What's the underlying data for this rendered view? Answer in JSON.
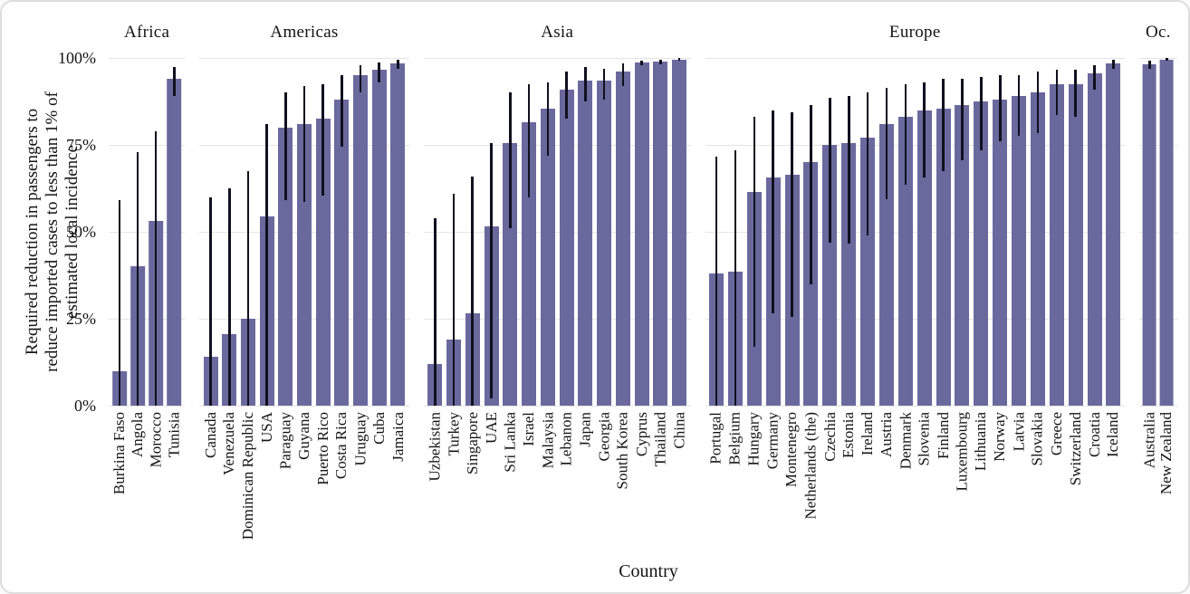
{
  "figure": {
    "x_axis_title": "Country",
    "y_axis": {
      "title_lines": [
        "Required reduction in passengers to",
        "reduce imported cases to less than 1% of",
        "estimated local incidence"
      ],
      "ticks": [
        "0%",
        "25%",
        "50%",
        "75%",
        "100%"
      ]
    },
    "colors": {
      "bar": "#6a699e",
      "error_bar": "#10101f",
      "gridline": "#e4e4e4",
      "text": "#141414",
      "border": "#dedede"
    }
  },
  "chart_data": {
    "type": "bar",
    "title": "",
    "xlabel": "Country",
    "ylabel": "Required reduction in passengers to reduce imported cases to less than 1% of estimated local incidence",
    "ylim": [
      0,
      100
    ],
    "y_tick_values": [
      0,
      25,
      50,
      75,
      100
    ],
    "grid": "horizontal",
    "legend": "none",
    "error_bars": true,
    "value_unit": "%",
    "facets": [
      {
        "name": "Africa",
        "countries": [
          {
            "name": "Burkina Faso",
            "value": 10,
            "lo": 0,
            "hi": 59
          },
          {
            "name": "Angola",
            "value": 40,
            "lo": 0,
            "hi": 73
          },
          {
            "name": "Morocco",
            "value": 53,
            "lo": 0,
            "hi": 79
          },
          {
            "name": "Tunisia",
            "value": 94,
            "lo": 89,
            "hi": 97.5
          }
        ]
      },
      {
        "name": "Americas",
        "countries": [
          {
            "name": "Canada",
            "value": 14,
            "lo": 0,
            "hi": 60
          },
          {
            "name": "Venezuela",
            "value": 20.5,
            "lo": 0,
            "hi": 62.5
          },
          {
            "name": "Dominican Republic",
            "value": 25,
            "lo": 0,
            "hi": 67.5
          },
          {
            "name": "USA",
            "value": 54.5,
            "lo": 0,
            "hi": 81
          },
          {
            "name": "Paraguay",
            "value": 80,
            "lo": 59,
            "hi": 90
          },
          {
            "name": "Guyana",
            "value": 81,
            "lo": 58.5,
            "hi": 92
          },
          {
            "name": "Puerto Rico",
            "value": 82.5,
            "lo": 60.5,
            "hi": 92.5
          },
          {
            "name": "Costa Rica",
            "value": 88,
            "lo": 74.5,
            "hi": 95
          },
          {
            "name": "Uruguay",
            "value": 95,
            "lo": 90,
            "hi": 98
          },
          {
            "name": "Cuba",
            "value": 96.5,
            "lo": 93,
            "hi": 98.7
          },
          {
            "name": "Jamaica",
            "value": 98.4,
            "lo": 97,
            "hi": 99.6
          }
        ]
      },
      {
        "name": "Asia",
        "countries": [
          {
            "name": "Uzbekistan",
            "value": 12,
            "lo": 0,
            "hi": 54
          },
          {
            "name": "Turkey",
            "value": 19,
            "lo": 0,
            "hi": 61
          },
          {
            "name": "Singapore",
            "value": 26.5,
            "lo": 0,
            "hi": 66
          },
          {
            "name": "UAE",
            "value": 51.5,
            "lo": 2,
            "hi": 75.5
          },
          {
            "name": "Sri Lanka",
            "value": 75.5,
            "lo": 51,
            "hi": 90
          },
          {
            "name": "Israel",
            "value": 81.5,
            "lo": 60,
            "hi": 92.5
          },
          {
            "name": "Malaysia",
            "value": 85.5,
            "lo": 72,
            "hi": 93
          },
          {
            "name": "Lebanon",
            "value": 91,
            "lo": 82.5,
            "hi": 96
          },
          {
            "name": "Japan",
            "value": 93.5,
            "lo": 87.5,
            "hi": 97.5
          },
          {
            "name": "Georgia",
            "value": 93.5,
            "lo": 88,
            "hi": 97
          },
          {
            "name": "South Korea",
            "value": 96,
            "lo": 92,
            "hi": 98.5
          },
          {
            "name": "Cyprus",
            "value": 98.7,
            "lo": 97.8,
            "hi": 99.3
          },
          {
            "name": "Thailand",
            "value": 98.9,
            "lo": 98.3,
            "hi": 99.4
          },
          {
            "name": "China",
            "value": 99.6,
            "lo": 99.2,
            "hi": 99.9
          }
        ]
      },
      {
        "name": "Europe",
        "countries": [
          {
            "name": "Portugal",
            "value": 38,
            "lo": 0,
            "hi": 71.5
          },
          {
            "name": "Belgium",
            "value": 38.5,
            "lo": 0,
            "hi": 73.5
          },
          {
            "name": "Hungary",
            "value": 61.5,
            "lo": 17,
            "hi": 83
          },
          {
            "name": "Germany",
            "value": 65.5,
            "lo": 26.5,
            "hi": 85
          },
          {
            "name": "Montenegro",
            "value": 66.5,
            "lo": 25.5,
            "hi": 84.5
          },
          {
            "name": "Netherlands (the)",
            "value": 70,
            "lo": 35,
            "hi": 86.5
          },
          {
            "name": "Czechia",
            "value": 75,
            "lo": 47,
            "hi": 88.5
          },
          {
            "name": "Estonia",
            "value": 75.5,
            "lo": 46.5,
            "hi": 89
          },
          {
            "name": "Ireland",
            "value": 77,
            "lo": 49,
            "hi": 90
          },
          {
            "name": "Austria",
            "value": 81,
            "lo": 59.5,
            "hi": 91.5
          },
          {
            "name": "Denmark",
            "value": 83,
            "lo": 63.5,
            "hi": 92.5
          },
          {
            "name": "Slovenia",
            "value": 85,
            "lo": 65.5,
            "hi": 93
          },
          {
            "name": "Finland",
            "value": 85.5,
            "lo": 67.5,
            "hi": 94
          },
          {
            "name": "Luxembourg",
            "value": 86.5,
            "lo": 70.5,
            "hi": 94
          },
          {
            "name": "Lithuania",
            "value": 87.5,
            "lo": 73.5,
            "hi": 94.5
          },
          {
            "name": "Norway",
            "value": 88,
            "lo": 76,
            "hi": 95
          },
          {
            "name": "Latvia",
            "value": 89,
            "lo": 77.5,
            "hi": 95
          },
          {
            "name": "Slovakia",
            "value": 90,
            "lo": 78.5,
            "hi": 96
          },
          {
            "name": "Greece",
            "value": 92.5,
            "lo": 83.5,
            "hi": 96.5
          },
          {
            "name": "Switzerland",
            "value": 92.5,
            "lo": 83,
            "hi": 96.5
          },
          {
            "name": "Croatia",
            "value": 95.5,
            "lo": 91,
            "hi": 98
          },
          {
            "name": "Iceland",
            "value": 98.5,
            "lo": 97,
            "hi": 99.5
          }
        ]
      },
      {
        "name": "Oc.",
        "countries": [
          {
            "name": "Australia",
            "value": 98.2,
            "lo": 96.8,
            "hi": 99.3
          },
          {
            "name": "New Zealand",
            "value": 99.5,
            "lo": 99.1,
            "hi": 99.9
          }
        ]
      }
    ]
  }
}
